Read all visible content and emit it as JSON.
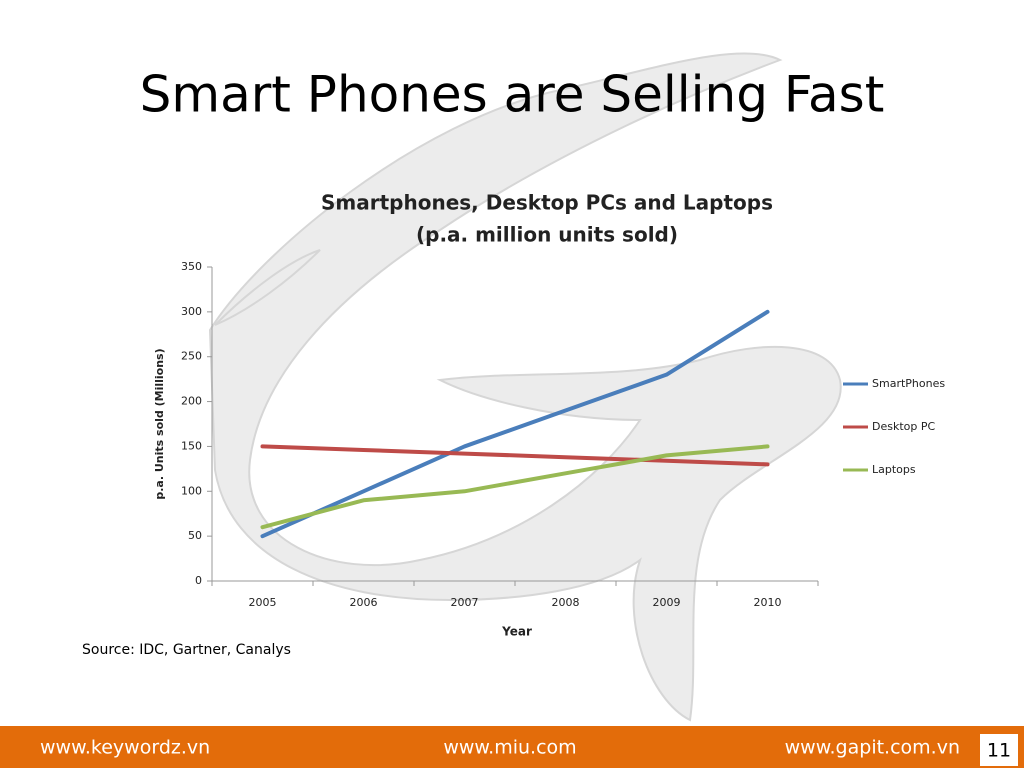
{
  "slide": {
    "title": "Smart Phones are Selling Fast"
  },
  "chart_data": {
    "type": "line",
    "title": "Smartphones, Desktop PCs and Laptops",
    "subtitle": "(p.a. million units sold)",
    "x_label": "Year",
    "y_label": "p.a. Units sold (Millions)",
    "categories": [
      "2005",
      "2006",
      "2007",
      "2008",
      "2009",
      "2010"
    ],
    "series": [
      {
        "name": "SmartPhones",
        "color": "#4a7ebb",
        "values": [
          50,
          100,
          150,
          190,
          230,
          300
        ]
      },
      {
        "name": "Desktop PC",
        "color": "#be4b48",
        "values": [
          150,
          146,
          142,
          138,
          134,
          130
        ]
      },
      {
        "name": "Laptops",
        "color": "#98b954",
        "values": [
          60,
          90,
          100,
          120,
          140,
          150
        ]
      }
    ],
    "ylim": [
      0,
      350
    ],
    "yticks": [
      0,
      50,
      100,
      150,
      200,
      250,
      300,
      350
    ],
    "grid": false,
    "legend": "right"
  },
  "source": "Source: IDC, Gartner, Canalys",
  "footer": {
    "links": [
      "www.keywordz.vn",
      "www.miu.com",
      "www.gapit.com.vn"
    ],
    "page": "11"
  }
}
